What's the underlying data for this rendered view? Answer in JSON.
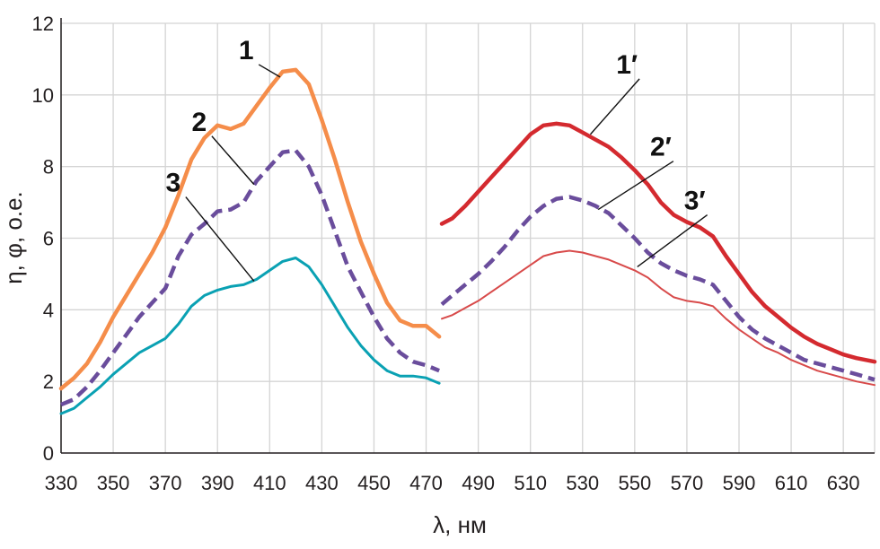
{
  "chart_data": {
    "type": "line",
    "title": "",
    "xlabel": "λ, нм",
    "ylabel": "η, φ, о.е.",
    "xlim": [
      330,
      642
    ],
    "ylim": [
      0,
      12
    ],
    "xticks": [
      330,
      350,
      370,
      390,
      410,
      430,
      450,
      470,
      490,
      510,
      530,
      550,
      570,
      590,
      610,
      630
    ],
    "yticks": [
      0,
      2,
      4,
      6,
      8,
      10,
      12
    ],
    "grid": true,
    "legend": "labels on curves",
    "series": [
      {
        "name": "1",
        "color": "#f58d4a",
        "style": "solid",
        "width": "thick",
        "x": [
          330,
          335,
          340,
          345,
          350,
          355,
          360,
          365,
          370,
          375,
          380,
          385,
          390,
          395,
          400,
          405,
          410,
          415,
          420,
          425,
          430,
          435,
          440,
          445,
          450,
          455,
          460,
          465,
          470,
          475
        ],
        "y": [
          1.8,
          2.1,
          2.5,
          3.1,
          3.8,
          4.4,
          5.0,
          5.6,
          6.3,
          7.2,
          8.2,
          8.8,
          9.15,
          9.05,
          9.2,
          9.7,
          10.2,
          10.65,
          10.7,
          10.3,
          9.3,
          8.2,
          7.0,
          5.9,
          5.0,
          4.2,
          3.7,
          3.55,
          3.55,
          3.25
        ]
      },
      {
        "name": "2",
        "color": "#6a4d9c",
        "style": "dashed",
        "width": "thick",
        "x": [
          330,
          335,
          340,
          345,
          350,
          355,
          360,
          365,
          370,
          375,
          380,
          385,
          390,
          395,
          400,
          405,
          410,
          415,
          420,
          425,
          430,
          435,
          440,
          445,
          450,
          455,
          460,
          465,
          470,
          475
        ],
        "y": [
          1.35,
          1.5,
          1.85,
          2.3,
          2.8,
          3.3,
          3.8,
          4.2,
          4.6,
          5.5,
          6.1,
          6.4,
          6.75,
          6.8,
          7.0,
          7.6,
          8.0,
          8.4,
          8.45,
          8.0,
          7.2,
          6.2,
          5.2,
          4.5,
          3.8,
          3.2,
          2.8,
          2.55,
          2.45,
          2.3
        ]
      },
      {
        "name": "3",
        "color": "#0aa1b3",
        "style": "solid",
        "width": "medium",
        "x": [
          330,
          335,
          340,
          345,
          350,
          355,
          360,
          365,
          370,
          375,
          380,
          385,
          390,
          395,
          400,
          405,
          410,
          415,
          420,
          425,
          430,
          435,
          440,
          445,
          450,
          455,
          460,
          465,
          470,
          475
        ],
        "y": [
          1.1,
          1.25,
          1.55,
          1.85,
          2.2,
          2.5,
          2.8,
          3.0,
          3.2,
          3.6,
          4.1,
          4.4,
          4.55,
          4.65,
          4.7,
          4.85,
          5.1,
          5.35,
          5.45,
          5.2,
          4.7,
          4.1,
          3.5,
          3.0,
          2.6,
          2.3,
          2.15,
          2.15,
          2.1,
          1.95
        ]
      },
      {
        "name": "1′",
        "color": "#d42a2f",
        "style": "solid",
        "width": "thick",
        "x": [
          476,
          480,
          485,
          490,
          495,
          500,
          505,
          510,
          515,
          520,
          525,
          530,
          535,
          540,
          545,
          550,
          555,
          560,
          565,
          570,
          575,
          580,
          585,
          590,
          595,
          600,
          605,
          610,
          615,
          620,
          625,
          630,
          635,
          642
        ],
        "y": [
          6.4,
          6.55,
          6.9,
          7.3,
          7.7,
          8.1,
          8.5,
          8.9,
          9.15,
          9.2,
          9.15,
          8.95,
          8.75,
          8.55,
          8.25,
          7.9,
          7.5,
          7.0,
          6.65,
          6.45,
          6.3,
          6.05,
          5.5,
          5.0,
          4.5,
          4.1,
          3.8,
          3.5,
          3.25,
          3.05,
          2.9,
          2.75,
          2.65,
          2.55
        ]
      },
      {
        "name": "2′",
        "color": "#6a4d9c",
        "style": "dashed",
        "width": "thick",
        "x": [
          476,
          480,
          485,
          490,
          495,
          500,
          505,
          510,
          515,
          520,
          525,
          530,
          535,
          540,
          545,
          550,
          555,
          560,
          565,
          570,
          575,
          580,
          585,
          590,
          595,
          600,
          605,
          610,
          615,
          620,
          625,
          630,
          635,
          642
        ],
        "y": [
          4.15,
          4.4,
          4.7,
          5.0,
          5.35,
          5.75,
          6.2,
          6.6,
          6.9,
          7.1,
          7.15,
          7.05,
          6.9,
          6.7,
          6.35,
          6.0,
          5.6,
          5.3,
          5.1,
          4.95,
          4.85,
          4.7,
          4.25,
          3.8,
          3.45,
          3.2,
          3.0,
          2.8,
          2.6,
          2.5,
          2.4,
          2.3,
          2.2,
          2.05
        ]
      },
      {
        "name": "3′",
        "color": "#d84a4a",
        "style": "solid",
        "width": "thin",
        "x": [
          476,
          480,
          485,
          490,
          495,
          500,
          505,
          510,
          515,
          520,
          525,
          530,
          535,
          540,
          545,
          550,
          555,
          560,
          565,
          570,
          575,
          580,
          585,
          590,
          595,
          600,
          605,
          610,
          615,
          620,
          625,
          630,
          635,
          642
        ],
        "y": [
          3.75,
          3.85,
          4.05,
          4.25,
          4.5,
          4.75,
          5.0,
          5.25,
          5.5,
          5.6,
          5.65,
          5.6,
          5.5,
          5.4,
          5.25,
          5.1,
          4.9,
          4.6,
          4.35,
          4.25,
          4.2,
          4.1,
          3.75,
          3.45,
          3.2,
          2.95,
          2.8,
          2.6,
          2.45,
          2.3,
          2.2,
          2.1,
          2.0,
          1.9
        ]
      }
    ],
    "annotations": [
      {
        "text": "1",
        "series": "1",
        "anchor_x": 414,
        "anchor_y": 10.5,
        "label_x": 401,
        "label_y": 11.0
      },
      {
        "text": "2",
        "series": "2",
        "anchor_x": 404,
        "anchor_y": 7.5,
        "label_x": 383,
        "label_y": 9.0
      },
      {
        "text": "3",
        "series": "3",
        "anchor_x": 404,
        "anchor_y": 4.8,
        "label_x": 373,
        "label_y": 7.3
      },
      {
        "text": "1′",
        "series": "1′",
        "anchor_x": 533,
        "anchor_y": 8.9,
        "label_x": 547,
        "label_y": 10.6
      },
      {
        "text": "2′",
        "series": "2′",
        "anchor_x": 536,
        "anchor_y": 6.8,
        "label_x": 560,
        "label_y": 8.3
      },
      {
        "text": "3′",
        "series": "3′",
        "anchor_x": 551,
        "anchor_y": 5.2,
        "label_x": 573,
        "label_y": 6.8
      }
    ]
  }
}
